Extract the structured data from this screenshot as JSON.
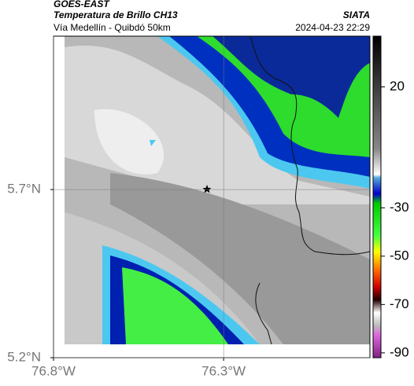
{
  "header": {
    "source": "GOES-EAST",
    "product": "Temperatura de Brillo CH13",
    "region": "Vía Medellín - Quibdó 50km",
    "agency": "SIATA",
    "datetime": "2024-04-23 22:29"
  },
  "map": {
    "xlim": [
      -76.8,
      -75.87
    ],
    "ylim": [
      5.2,
      6.156
    ],
    "lon_ticks": [
      {
        "value": -76.8,
        "label": "76.8°W"
      },
      {
        "value": -76.3,
        "label": "76.3°W"
      }
    ],
    "lat_ticks": [
      {
        "value": 5.7,
        "label": "5.7°N"
      },
      {
        "value": 5.2,
        "label": "5.2°N"
      }
    ]
  },
  "colorbar": {
    "clim": [
      -92,
      41
    ],
    "ticks": [
      20,
      -30,
      -50,
      -70,
      -90
    ]
  }
}
